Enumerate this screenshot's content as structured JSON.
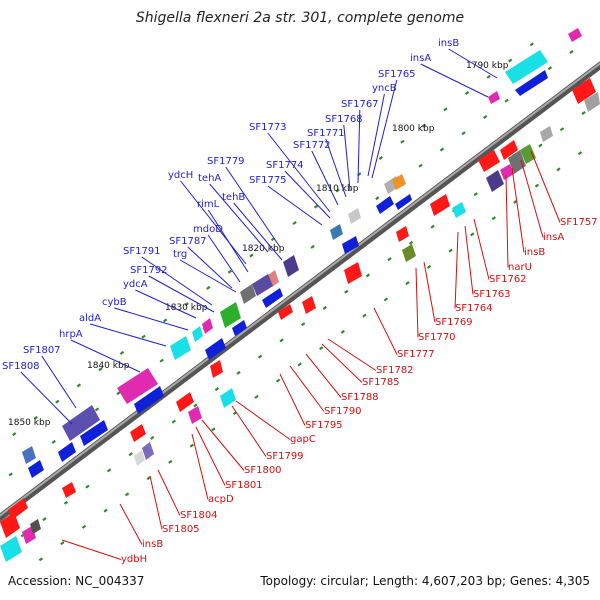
{
  "title": "Shigella flexneri 2a str. 301, complete genome",
  "footer": {
    "accession": "Accession: NC_004337",
    "summary": "Topology: circular; Length: 4,607,203 bp; Genes: 4,305"
  },
  "colors": {
    "forward_label": "#1f1fcc",
    "reverse_label": "#d41010",
    "backbone": "#7a7a7a",
    "tick": "#2b8a2b"
  },
  "kbp_markers": [
    "1790 kbp",
    "1800 kbp",
    "1810 kbp",
    "1820 kbp",
    "1830 kbp",
    "1840 kbp",
    "1850 kbp"
  ],
  "forward_genes": [
    "insB",
    "insA",
    "SF1765",
    "yncB",
    "SF1767",
    "SF1768",
    "SF1771",
    "SF1772",
    "SF1773",
    "SF1774",
    "SF1775",
    "SF1779",
    "tehA",
    "tehB",
    "ydcH",
    "rimL",
    "mdoD",
    "SF1787",
    "trg",
    "SF1791",
    "SF1792",
    "ydcA",
    "cybB",
    "aldA",
    "hrpA",
    "SF1807",
    "SF1808"
  ],
  "reverse_genes": [
    "SF1757",
    "insA",
    "insB",
    "narU",
    "SF1762",
    "SF1763",
    "SF1764",
    "SF1769",
    "SF1770",
    "SF1777",
    "SF1782",
    "SF1785",
    "SF1788",
    "SF1790",
    "SF1795",
    "gapC",
    "SF1799",
    "SF1800",
    "SF1801",
    "acpD",
    "SF1804",
    "SF1805",
    "insB",
    "ydbH"
  ]
}
